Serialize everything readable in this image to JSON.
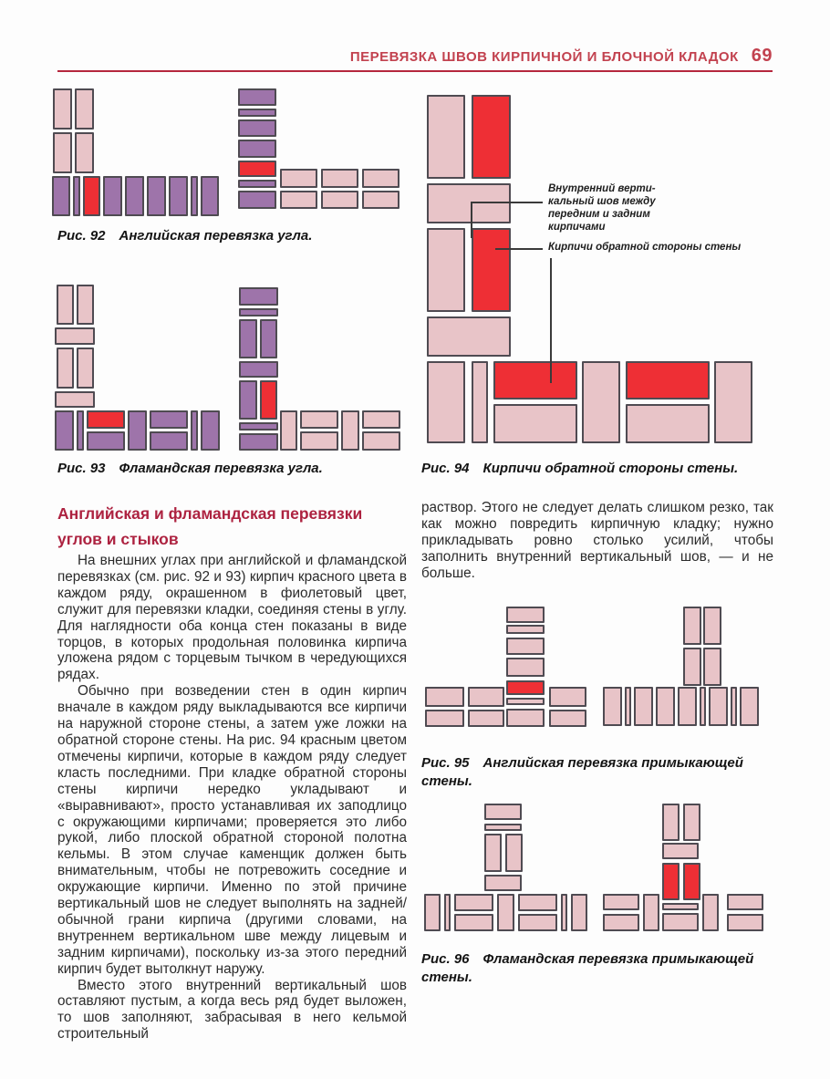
{
  "header": {
    "title": "ПЕРЕВЯЗКА ШВОВ КИРПИЧНОЙ И БЛОЧНОЙ КЛАДОК",
    "page_number": "69"
  },
  "colors": {
    "pink": "#e8c4c8",
    "purple": "#9e74aa",
    "red": "#ee2f35",
    "outline": "#4f4b52",
    "header_red": "#c2424f",
    "heading_red": "#ad2240",
    "rule_red": "#b5273d"
  },
  "figures": {
    "fig92": {
      "label": "Рис. 92",
      "caption": "Английская перевязка угла.",
      "left_bricks": [
        [
          1,
          0,
          21,
          45,
          "K"
        ],
        [
          25,
          0,
          21,
          45,
          "K"
        ],
        [
          1,
          48,
          21,
          45,
          "K"
        ],
        [
          25,
          48,
          21,
          45,
          "K"
        ],
        [
          0,
          96,
          20,
          44,
          "P"
        ],
        [
          23,
          96,
          8,
          44,
          "P"
        ],
        [
          34,
          96,
          19,
          44,
          "R"
        ],
        [
          56,
          96,
          21,
          44,
          "P"
        ],
        [
          80,
          96,
          21,
          44,
          "P"
        ],
        [
          104,
          96,
          21,
          44,
          "P"
        ],
        [
          128,
          96,
          21,
          44,
          "P"
        ],
        [
          152,
          96,
          8,
          44,
          "P"
        ],
        [
          163,
          96,
          20,
          44,
          "P"
        ]
      ],
      "right_bricks": [
        [
          0,
          0,
          42,
          19,
          "P"
        ],
        [
          0,
          22,
          42,
          9,
          "P"
        ],
        [
          0,
          34,
          42,
          19,
          "P"
        ],
        [
          0,
          56,
          42,
          20,
          "P"
        ],
        [
          0,
          79,
          42,
          18,
          "R"
        ],
        [
          0,
          100,
          42,
          9,
          "P"
        ],
        [
          0,
          112,
          42,
          20,
          "P"
        ],
        [
          46,
          88,
          41,
          21,
          "K"
        ],
        [
          91,
          88,
          41,
          21,
          "K"
        ],
        [
          136,
          88,
          41,
          21,
          "K"
        ],
        [
          46,
          112,
          41,
          20,
          "K"
        ],
        [
          91,
          112,
          41,
          20,
          "K"
        ],
        [
          136,
          112,
          41,
          20,
          "K"
        ]
      ]
    },
    "fig93": {
      "label": "Рис. 93",
      "caption": "Фламандская перевязка угла.",
      "left_bricks": [
        [
          2,
          0,
          19,
          44,
          "K"
        ],
        [
          24,
          0,
          19,
          44,
          "K"
        ],
        [
          0,
          47,
          44,
          19,
          "K"
        ],
        [
          2,
          69,
          19,
          45,
          "K"
        ],
        [
          24,
          69,
          19,
          45,
          "K"
        ],
        [
          0,
          117,
          44,
          18,
          "K"
        ],
        [
          0,
          138,
          21,
          44,
          "P"
        ],
        [
          24,
          138,
          8,
          44,
          "P"
        ],
        [
          35,
          138,
          42,
          20,
          "R"
        ],
        [
          35,
          161,
          42,
          21,
          "P"
        ],
        [
          80,
          138,
          21,
          44,
          "P"
        ],
        [
          104,
          138,
          42,
          20,
          "P"
        ],
        [
          104,
          161,
          42,
          21,
          "P"
        ],
        [
          149,
          138,
          8,
          44,
          "P"
        ],
        [
          160,
          138,
          21,
          44,
          "P"
        ]
      ],
      "right_bricks": [
        [
          0,
          3,
          43,
          20,
          "P"
        ],
        [
          0,
          26,
          43,
          9,
          "P"
        ],
        [
          0,
          38,
          20,
          43,
          "P"
        ],
        [
          23,
          38,
          19,
          43,
          "P"
        ],
        [
          0,
          84,
          43,
          18,
          "P"
        ],
        [
          0,
          105,
          20,
          43,
          "P"
        ],
        [
          23,
          105,
          19,
          43,
          "R"
        ],
        [
          0,
          151,
          43,
          9,
          "P"
        ],
        [
          0,
          163,
          43,
          19,
          "P"
        ],
        [
          45,
          138,
          19,
          44,
          "K"
        ],
        [
          67,
          138,
          42,
          20,
          "K"
        ],
        [
          67,
          161,
          42,
          21,
          "K"
        ],
        [
          112,
          138,
          20,
          44,
          "K"
        ],
        [
          135,
          138,
          42,
          20,
          "K"
        ],
        [
          135,
          161,
          42,
          21,
          "K"
        ]
      ]
    },
    "fig94": {
      "label": "Рис. 94",
      "caption": "Кирпичи обратной стороны стены.",
      "bricks": [
        [
          0,
          0,
          42,
          92,
          "K"
        ],
        [
          49,
          0,
          43,
          92,
          "R"
        ],
        [
          0,
          97,
          92,
          44,
          "K"
        ],
        [
          0,
          146,
          42,
          92,
          "K"
        ],
        [
          49,
          146,
          43,
          92,
          "R"
        ],
        [
          0,
          243,
          92,
          44,
          "K"
        ],
        [
          0,
          292,
          42,
          90,
          "K"
        ],
        [
          49,
          292,
          18,
          90,
          "K"
        ],
        [
          73,
          292,
          92,
          42,
          "R"
        ],
        [
          73,
          339,
          92,
          43,
          "K"
        ],
        [
          170,
          292,
          42,
          90,
          "K"
        ],
        [
          218,
          292,
          92,
          42,
          "R"
        ],
        [
          218,
          339,
          92,
          43,
          "K"
        ],
        [
          315,
          292,
          42,
          90,
          "K"
        ]
      ],
      "lines": [
        [
          49,
          117,
          78,
          2
        ],
        [
          48,
          117,
          2,
          40
        ],
        [
          75,
          168,
          52,
          2
        ],
        [
          135,
          179,
          2,
          137
        ]
      ],
      "annotations": [
        {
          "text": "Внутренний верти-\nкальный шов между\nпередним и задним\nкирпичами"
        },
        {
          "text": "Кирпичи обратной стороны стены"
        }
      ]
    },
    "fig95": {
      "label": "Рис. 95",
      "caption": "Английская перевязка примыкающей стены.",
      "left_bricks": [
        [
          89,
          2,
          42,
          18,
          "K"
        ],
        [
          89,
          22,
          42,
          10,
          "K"
        ],
        [
          89,
          36,
          42,
          19,
          "K"
        ],
        [
          89,
          58,
          42,
          21,
          "K"
        ],
        [
          89,
          83,
          42,
          16,
          "R"
        ],
        [
          89,
          102,
          42,
          8,
          "K"
        ],
        [
          0,
          90,
          43,
          22,
          "K"
        ],
        [
          47,
          90,
          40,
          22,
          "K"
        ],
        [
          136,
          90,
          41,
          22,
          "K"
        ],
        [
          0,
          115,
          43,
          19,
          "K"
        ],
        [
          47,
          115,
          40,
          19,
          "K"
        ],
        [
          89,
          114,
          42,
          20,
          "K"
        ],
        [
          136,
          115,
          41,
          19,
          "K"
        ]
      ],
      "right_bricks": [
        [
          88,
          2,
          20,
          42,
          "K"
        ],
        [
          110,
          2,
          20,
          42,
          "K"
        ],
        [
          88,
          47,
          20,
          42,
          "K"
        ],
        [
          110,
          47,
          20,
          42,
          "K"
        ],
        [
          0,
          90,
          21,
          43,
          "K"
        ],
        [
          24,
          90,
          7,
          43,
          "K"
        ],
        [
          34,
          90,
          21,
          43,
          "K"
        ],
        [
          58,
          90,
          21,
          43,
          "K"
        ],
        [
          82,
          90,
          21,
          43,
          "K"
        ],
        [
          106,
          90,
          7,
          43,
          "K"
        ],
        [
          116,
          90,
          21,
          43,
          "K"
        ],
        [
          140,
          90,
          7,
          43,
          "K"
        ],
        [
          150,
          90,
          21,
          43,
          "K"
        ]
      ]
    },
    "fig96": {
      "label": "Рис. 96",
      "caption": "Фламандская перевязка примыкающей стены.",
      "left_bricks": [
        [
          66,
          1,
          41,
          18,
          "K"
        ],
        [
          66,
          23,
          41,
          8,
          "K"
        ],
        [
          66,
          34,
          19,
          42,
          "K"
        ],
        [
          89,
          34,
          19,
          42,
          "K"
        ],
        [
          66,
          79,
          41,
          18,
          "K"
        ],
        [
          0,
          100,
          18,
          41,
          "K"
        ],
        [
          22,
          100,
          7,
          41,
          "K"
        ],
        [
          33,
          100,
          43,
          19,
          "K"
        ],
        [
          33,
          122,
          43,
          19,
          "K"
        ],
        [
          80,
          100,
          19,
          41,
          "K"
        ],
        [
          103,
          100,
          43,
          19,
          "K"
        ],
        [
          103,
          122,
          43,
          19,
          "K"
        ],
        [
          150,
          100,
          7,
          41,
          "K"
        ],
        [
          161,
          100,
          18,
          41,
          "K"
        ]
      ],
      "right_bricks": [
        [
          65,
          1,
          19,
          41,
          "K"
        ],
        [
          88,
          1,
          19,
          41,
          "K"
        ],
        [
          65,
          44,
          40,
          18,
          "K"
        ],
        [
          65,
          66,
          19,
          41,
          "R"
        ],
        [
          88,
          66,
          19,
          41,
          "R"
        ],
        [
          65,
          110,
          40,
          8,
          "K"
        ],
        [
          65,
          121,
          40,
          20,
          "K"
        ],
        [
          0,
          100,
          40,
          18,
          "K"
        ],
        [
          0,
          122,
          40,
          19,
          "K"
        ],
        [
          44,
          100,
          18,
          41,
          "K"
        ],
        [
          109,
          100,
          18,
          41,
          "K"
        ],
        [
          136,
          100,
          40,
          18,
          "K"
        ],
        [
          136,
          122,
          40,
          19,
          "K"
        ]
      ]
    }
  },
  "article": {
    "heading": "Английская и фламандская перевязки\nуглов и стыков",
    "left_paragraphs": [
      "На внешних углах при английской и фламандской перевязках (см. рис. 92 и 93) кирпич красного цвета в каждом ряду, окрашенном в фиолетовый цвет, служит для перевязки кладки, соединяя стены в углу. Для наглядности оба конца стен показаны в виде торцов, в которых продольная половинка кирпича уложена рядом с торцевым тычком в чередующихся рядах.",
      "Обычно при возведении стен в один кирпич вначале в каждом ряду выкладываются все кирпичи на наружной стороне стены, а затем уже ложки на обратной стороне стены. На рис. 94 красным цветом отмечены кирпичи, которые в каждом ряду следует класть последними. При кладке обратной стороны стены кирпичи нередко укладывают и «выравнивают», просто устанавливая их заподлицо с окружающими кирпичами; проверяется это либо рукой, либо плоской обратной стороной полотна кельмы. В этом случае каменщик должен быть внимательным, чтобы не потревожить соседние и окружающие кирпичи. Именно по этой причине вертикальный шов не следует выполнять на задней/обычной грани кирпича (другими словами, на внутреннем вертикальном шве между лицевым и задним кирпичами), поскольку из-за этого передний кирпич будет вытолкнут наружу.",
      "Вместо этого внутренний вертикальный шов оставляют пустым, а когда весь ряд будет выложен, то шов заполняют, забрасывая в него кельмой строительный"
    ],
    "right_paragraphs": [
      "раствор. Этого не следует делать слишком резко, так как можно повредить кирпичную кладку; нужно прикладывать ровно столько усилий, чтобы заполнить внутренний вертикальный шов, — и не больше."
    ]
  }
}
